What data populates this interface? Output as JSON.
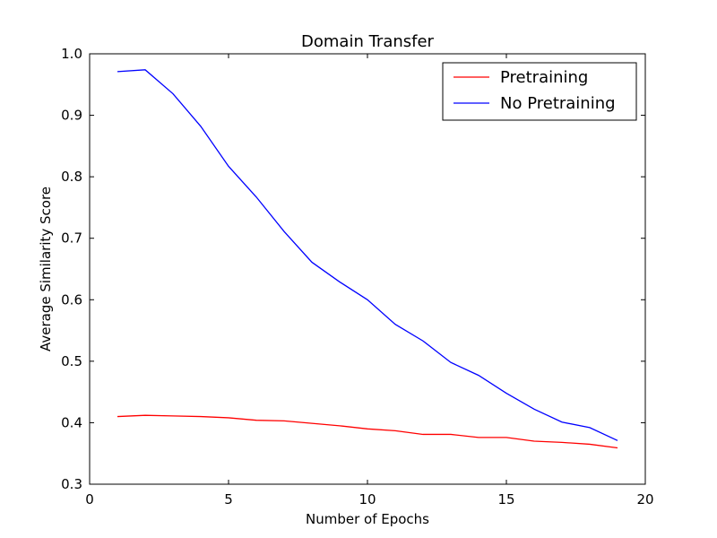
{
  "chart_data": {
    "type": "line",
    "title": "Domain Transfer",
    "xlabel": "Number of Epochs",
    "ylabel": "Average Similarity Score",
    "xlim": [
      0,
      20
    ],
    "ylim": [
      0.3,
      1.0
    ],
    "xticks": [
      0,
      5,
      10,
      15,
      20
    ],
    "yticks": [
      0.3,
      0.4,
      0.5,
      0.6,
      0.7,
      0.8,
      0.9,
      1.0
    ],
    "xtick_labels": [
      "0",
      "5",
      "10",
      "15",
      "20"
    ],
    "ytick_labels": [
      "0.3",
      "0.4",
      "0.5",
      "0.6",
      "0.7",
      "0.8",
      "0.9",
      "1.0"
    ],
    "grid": false,
    "legend_position": "top-right",
    "x": [
      1,
      2,
      3,
      4,
      5,
      6,
      7,
      8,
      9,
      10,
      11,
      12,
      13,
      14,
      15,
      16,
      17,
      18,
      19
    ],
    "series": [
      {
        "name": "Pretraining",
        "color": "#ff0000",
        "values": [
          0.41,
          0.412,
          0.411,
          0.41,
          0.408,
          0.404,
          0.403,
          0.399,
          0.395,
          0.39,
          0.387,
          0.381,
          0.381,
          0.376,
          0.376,
          0.37,
          0.368,
          0.365,
          0.359
        ]
      },
      {
        "name": "No Pretraining",
        "color": "#0000ff",
        "values": [
          0.971,
          0.974,
          0.935,
          0.882,
          0.817,
          0.767,
          0.711,
          0.661,
          0.629,
          0.6,
          0.56,
          0.533,
          0.498,
          0.477,
          0.448,
          0.422,
          0.401,
          0.392,
          0.371
        ]
      }
    ]
  }
}
